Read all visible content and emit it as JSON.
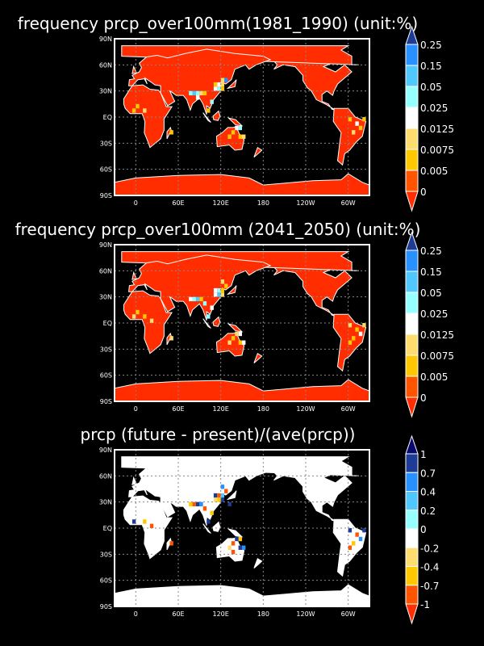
{
  "lon_ticks": [
    "0",
    "60E",
    "120E",
    "180",
    "120W",
    "60W"
  ],
  "lat_ticks": [
    "90N",
    "60N",
    "30N",
    "EQ",
    "30S",
    "60S",
    "90S"
  ],
  "panels": [
    {
      "title": "frequency prcp_over100mm(1981_1990) (unit:%)",
      "land_class": 0,
      "colorbar": {
        "labels": [
          "0.25",
          "0.15",
          "0.05",
          "0.025",
          "0.0125",
          "0.0075",
          "0.005",
          "0"
        ],
        "colors": [
          "#ff2d00",
          "#ff5500",
          "#ffc800",
          "#ffdc6e",
          "#ffffff",
          "#96ffff",
          "#50c8ff",
          "#2890ff",
          "#1e3c96"
        ]
      },
      "cells": [
        [
          110,
          35,
          2
        ],
        [
          115,
          35,
          4
        ],
        [
          120,
          35,
          3
        ],
        [
          115,
          30,
          5
        ],
        [
          120,
          30,
          2
        ],
        [
          110,
          30,
          4
        ],
        [
          125,
          40,
          7
        ],
        [
          120,
          40,
          3
        ],
        [
          80,
          25,
          6
        ],
        [
          85,
          25,
          5
        ],
        [
          75,
          25,
          5
        ],
        [
          90,
          25,
          3
        ],
        [
          95,
          25,
          2
        ],
        [
          85,
          20,
          4
        ],
        [
          140,
          -15,
          4
        ],
        [
          145,
          -15,
          5
        ],
        [
          135,
          -20,
          2
        ],
        [
          150,
          -25,
          3
        ],
        [
          130,
          -25,
          2
        ],
        [
          145,
          -25,
          2
        ],
        [
          -5,
          5,
          2
        ],
        [
          0,
          10,
          2
        ],
        [
          10,
          5,
          3
        ],
        [
          300,
          -5,
          2
        ],
        [
          310,
          -10,
          4
        ],
        [
          315,
          -15,
          2
        ],
        [
          305,
          -20,
          3
        ],
        [
          320,
          -5,
          2
        ],
        [
          48,
          -20,
          2
        ],
        [
          105,
          15,
          5
        ],
        [
          100,
          5,
          2
        ]
      ]
    },
    {
      "title": "frequency prcp_over100mm (2041_2050) (unit:%)",
      "land_class": 0,
      "colorbar": {
        "labels": [
          "0.25",
          "0.15",
          "0.05",
          "0.025",
          "0.0125",
          "0.0075",
          "0.005",
          "0"
        ],
        "colors": [
          "#ff2d00",
          "#ff5500",
          "#ffc800",
          "#ffdc6e",
          "#ffffff",
          "#96ffff",
          "#50c8ff",
          "#2890ff",
          "#1e3c96"
        ]
      },
      "cells": [
        [
          110,
          35,
          4
        ],
        [
          115,
          35,
          5
        ],
        [
          120,
          35,
          2
        ],
        [
          115,
          30,
          6
        ],
        [
          120,
          30,
          3
        ],
        [
          110,
          30,
          4
        ],
        [
          125,
          40,
          2
        ],
        [
          120,
          45,
          3
        ],
        [
          80,
          25,
          5
        ],
        [
          85,
          25,
          6
        ],
        [
          75,
          25,
          4
        ],
        [
          90,
          25,
          2
        ],
        [
          95,
          20,
          5
        ],
        [
          140,
          -15,
          3
        ],
        [
          145,
          -15,
          4
        ],
        [
          135,
          -20,
          2
        ],
        [
          150,
          -25,
          4
        ],
        [
          130,
          -25,
          3
        ],
        [
          145,
          -25,
          2
        ],
        [
          -5,
          5,
          3
        ],
        [
          0,
          10,
          2
        ],
        [
          10,
          5,
          2
        ],
        [
          20,
          0,
          3
        ],
        [
          300,
          -5,
          3
        ],
        [
          310,
          -10,
          2
        ],
        [
          315,
          -15,
          4
        ],
        [
          305,
          -20,
          2
        ],
        [
          320,
          -5,
          3
        ],
        [
          300,
          -25,
          2
        ],
        [
          48,
          -20,
          3
        ],
        [
          105,
          15,
          4
        ],
        [
          100,
          5,
          5
        ]
      ]
    },
    {
      "title": "prcp (future - present)/(ave(prcp))",
      "land_class": 4,
      "colorbar": {
        "labels": [
          "1",
          "0.7",
          "0.4",
          "0.2",
          "0",
          "-0.2",
          "-0.4",
          "-0.7",
          "-1"
        ],
        "colors": [
          "#ff2d00",
          "#ff5500",
          "#ffc800",
          "#ffdc6e",
          "#ffffff",
          "#96ffff",
          "#50c8ff",
          "#2890ff",
          "#1e3c96",
          "#0a0a6e"
        ]
      },
      "cells": [
        [
          110,
          35,
          8
        ],
        [
          115,
          35,
          1
        ],
        [
          120,
          35,
          6
        ],
        [
          115,
          30,
          2
        ],
        [
          120,
          30,
          8
        ],
        [
          110,
          30,
          3
        ],
        [
          125,
          40,
          1
        ],
        [
          120,
          45,
          7
        ],
        [
          80,
          25,
          1
        ],
        [
          85,
          25,
          8
        ],
        [
          75,
          25,
          2
        ],
        [
          90,
          25,
          7
        ],
        [
          95,
          20,
          1
        ],
        [
          140,
          -15,
          8
        ],
        [
          145,
          -15,
          2
        ],
        [
          135,
          -20,
          1
        ],
        [
          150,
          -25,
          7
        ],
        [
          130,
          -25,
          3
        ],
        [
          145,
          -25,
          8
        ],
        [
          135,
          -30,
          1
        ],
        [
          -5,
          5,
          8
        ],
        [
          10,
          5,
          2
        ],
        [
          20,
          0,
          1
        ],
        [
          300,
          -5,
          8
        ],
        [
          310,
          -10,
          1
        ],
        [
          315,
          -15,
          7
        ],
        [
          305,
          -20,
          2
        ],
        [
          320,
          -5,
          8
        ],
        [
          300,
          -25,
          1
        ],
        [
          48,
          -20,
          1
        ],
        [
          105,
          15,
          2
        ],
        [
          100,
          5,
          8
        ],
        [
          130,
          25,
          8
        ]
      ]
    }
  ]
}
